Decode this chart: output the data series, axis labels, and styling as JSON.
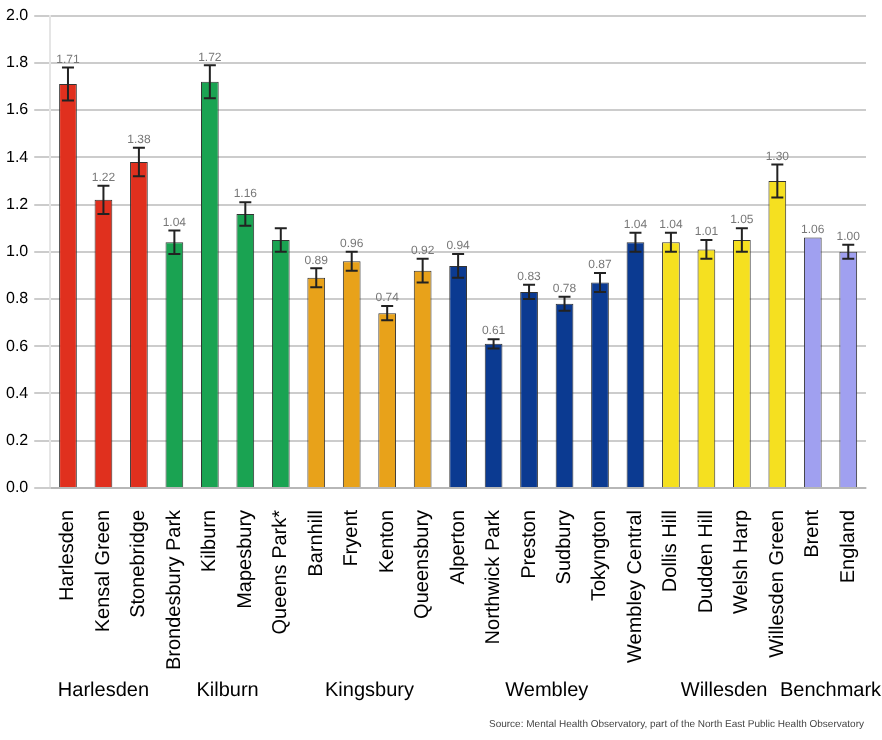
{
  "chart_data": {
    "type": "bar",
    "categories": [
      "Harlesden",
      "Kensal Green",
      "Stonebridge",
      "Brondesbury Park",
      "Kilburn",
      "Mapesbury",
      "Queens Park*",
      "Barnhill",
      "Fryent",
      "Kenton",
      "Queensbury",
      "Alperton",
      "Northwick Park",
      "Preston",
      "Sudbury",
      "Tokyngton",
      "Wembley Central",
      "Dollis Hill",
      "Dudden Hill",
      "Welsh Harp",
      "Willesden Green",
      "Brent",
      "England"
    ],
    "values": [
      1.71,
      1.22,
      1.38,
      1.04,
      1.72,
      1.16,
      1.05,
      0.89,
      0.96,
      0.74,
      0.92,
      0.94,
      0.61,
      0.83,
      0.78,
      0.87,
      1.04,
      1.04,
      1.01,
      1.05,
      1.3,
      1.06,
      1.0
    ],
    "value_labels": [
      "1.71",
      "1.22",
      "1.38",
      "1.04",
      "1.72",
      "1.16",
      null,
      "0.89",
      "0.96",
      "0.74",
      "0.92",
      "0.94",
      "0.61",
      "0.83",
      "0.78",
      "0.87",
      "1.04",
      "1.04",
      "1.01",
      "1.05",
      "1.30",
      "1.06",
      "1.00"
    ],
    "errors": [
      0.07,
      0.06,
      0.06,
      0.05,
      0.07,
      0.05,
      0.05,
      0.04,
      0.04,
      0.03,
      0.05,
      0.05,
      0.02,
      0.03,
      0.03,
      0.04,
      0.04,
      0.04,
      0.04,
      0.05,
      0.07,
      null,
      0.03
    ],
    "colors": [
      "#e0301e",
      "#e0301e",
      "#e0301e",
      "#1aa352",
      "#1aa352",
      "#1aa352",
      "#1aa352",
      "#e8a21a",
      "#e8a21a",
      "#e8a21a",
      "#e8a21a",
      "#0b3a91",
      "#0b3a91",
      "#0b3a91",
      "#0b3a91",
      "#0b3a91",
      "#0b3a91",
      "#f5e020",
      "#f5e020",
      "#f5e020",
      "#f5e020",
      "#a0a0f0",
      "#a0a0f0"
    ],
    "ylim": [
      0,
      2
    ],
    "yticks": [
      {
        "value": 0,
        "label": "0.0"
      },
      0.2,
      0.4,
      0.6,
      0.8,
      {
        "value": 1,
        "label": "1.0"
      },
      1.2,
      1.4,
      1.6,
      1.8,
      {
        "value": 2,
        "label": "2.0"
      }
    ],
    "grid": "y",
    "legend": false,
    "annotations": [
      "Harlesden",
      "Kilburn",
      "Kingsbury",
      "Wembley",
      "Willesden",
      "Benchmark",
      "Source: Mental Health Observatory, part of the North East Public Health Observatory"
    ]
  }
}
